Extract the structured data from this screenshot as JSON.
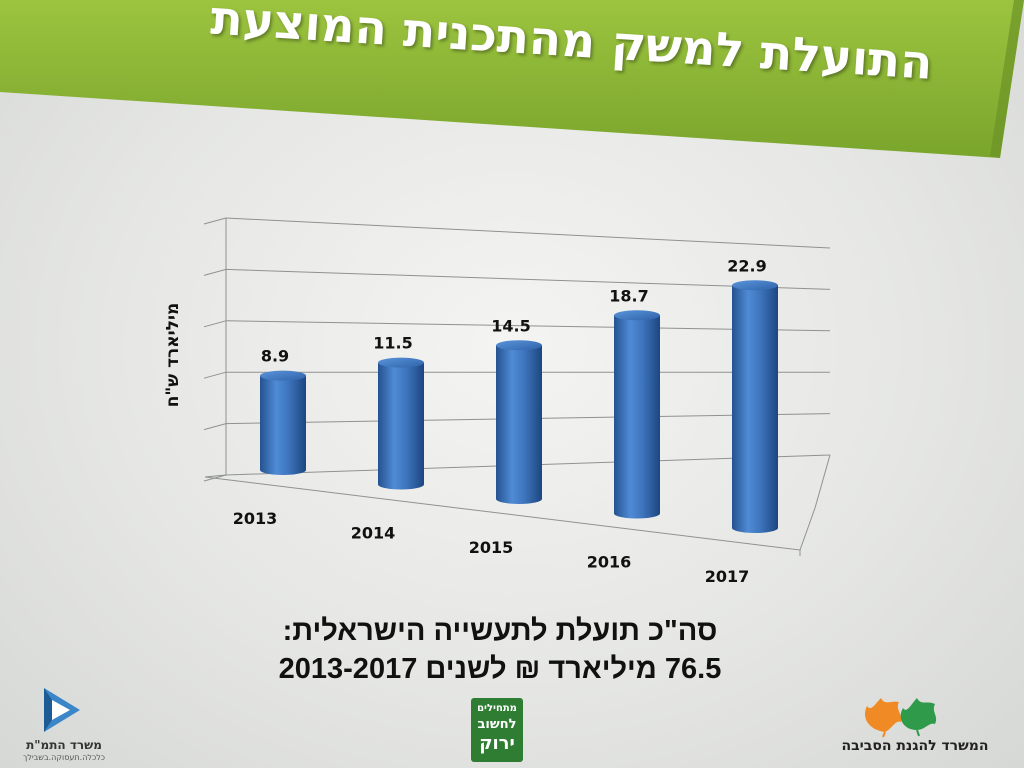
{
  "title": {
    "line1": "התועלת למשק מהתכנית המוצעת"
  },
  "colors": {
    "banner_green": "#8ab536",
    "bar_blue": "#3f77bf",
    "text_dark": "#111111"
  },
  "chart_data": {
    "type": "bar",
    "style": "3d-cylinder",
    "categories": [
      "2013",
      "2014",
      "2015",
      "2016",
      "2017"
    ],
    "values": [
      8.9,
      11.5,
      14.5,
      18.7,
      22.9
    ],
    "ylabel": "מיליארד ש\"ח",
    "xlabel": "",
    "ylim": [
      0,
      25
    ],
    "grid": true,
    "legend": "none"
  },
  "summary": {
    "line1": "סה\"כ תועלת לתעשייה הישראלית:",
    "line2": "76.5 מיליארד ₪ לשנים 2013-2017"
  },
  "logos": {
    "left_caption": "משרד התמ\"ת",
    "left_subcaption": "כלכלה.תעסוקה.בשבילך",
    "center_line1": "מתחילים",
    "center_line2": "לחשוב",
    "center_line3": "ירוק",
    "right_caption": "המשרד להגנת הסביבה"
  }
}
